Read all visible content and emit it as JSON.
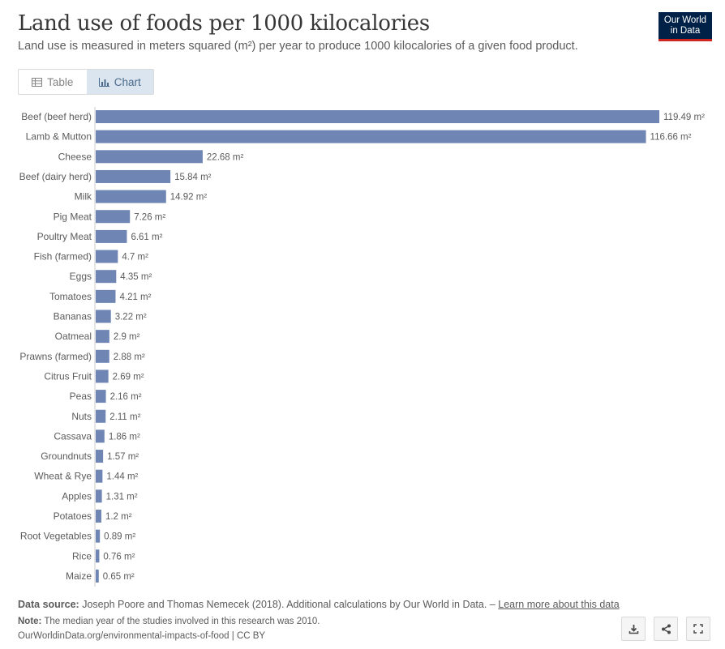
{
  "header": {
    "title": "Land use of foods per 1000 kilocalories",
    "subtitle": "Land use is measured in meters squared (m²) per year to produce 1000 kilocalories of a given food product.",
    "logo_line1": "Our World",
    "logo_line2": "in Data"
  },
  "tabs": {
    "table_label": "Table",
    "chart_label": "Chart"
  },
  "colors": {
    "bar": "#6f86b4",
    "logo_bg": "#002147",
    "logo_accent": "#ce261e",
    "active_tab": "#dbe5f0"
  },
  "chart_data": {
    "type": "bar",
    "orientation": "horizontal",
    "unit": "m²",
    "xlim": [
      0,
      119.49
    ],
    "grid": false,
    "categories": [
      "Beef (beef herd)",
      "Lamb & Mutton",
      "Cheese",
      "Beef (dairy herd)",
      "Milk",
      "Pig Meat",
      "Poultry Meat",
      "Fish (farmed)",
      "Eggs",
      "Tomatoes",
      "Bananas",
      "Oatmeal",
      "Prawns (farmed)",
      "Citrus Fruit",
      "Peas",
      "Nuts",
      "Cassava",
      "Groundnuts",
      "Wheat & Rye",
      "Apples",
      "Potatoes",
      "Root Vegetables",
      "Rice",
      "Maize"
    ],
    "values": [
      119.49,
      116.66,
      22.68,
      15.84,
      14.92,
      7.26,
      6.61,
      4.7,
      4.35,
      4.21,
      3.22,
      2.9,
      2.88,
      2.69,
      2.16,
      2.11,
      1.86,
      1.57,
      1.44,
      1.31,
      1.2,
      0.89,
      0.76,
      0.65
    ],
    "value_labels": [
      "119.49 m²",
      "116.66 m²",
      "22.68 m²",
      "15.84 m²",
      "14.92 m²",
      "7.26 m²",
      "6.61 m²",
      "4.7 m²",
      "4.35 m²",
      "4.21 m²",
      "3.22 m²",
      "2.9 m²",
      "2.88 m²",
      "2.69 m²",
      "2.16 m²",
      "2.11 m²",
      "1.86 m²",
      "1.57 m²",
      "1.44 m²",
      "1.31 m²",
      "1.2 m²",
      "0.89 m²",
      "0.76 m²",
      "0.65 m²"
    ]
  },
  "footer": {
    "source_label": "Data source:",
    "source_text": "Joseph Poore and Thomas Nemecek (2018). Additional calculations by Our World in Data. –",
    "source_link": "Learn more about this data",
    "note_label": "Note:",
    "note_text": "The median year of the studies involved in this research was 2010.",
    "url_text": "OurWorldinData.org/environmental-impacts-of-food | CC BY"
  },
  "actions": {
    "download_icon": "download-icon",
    "share_icon": "share-icon",
    "fullscreen_icon": "fullscreen-icon"
  }
}
